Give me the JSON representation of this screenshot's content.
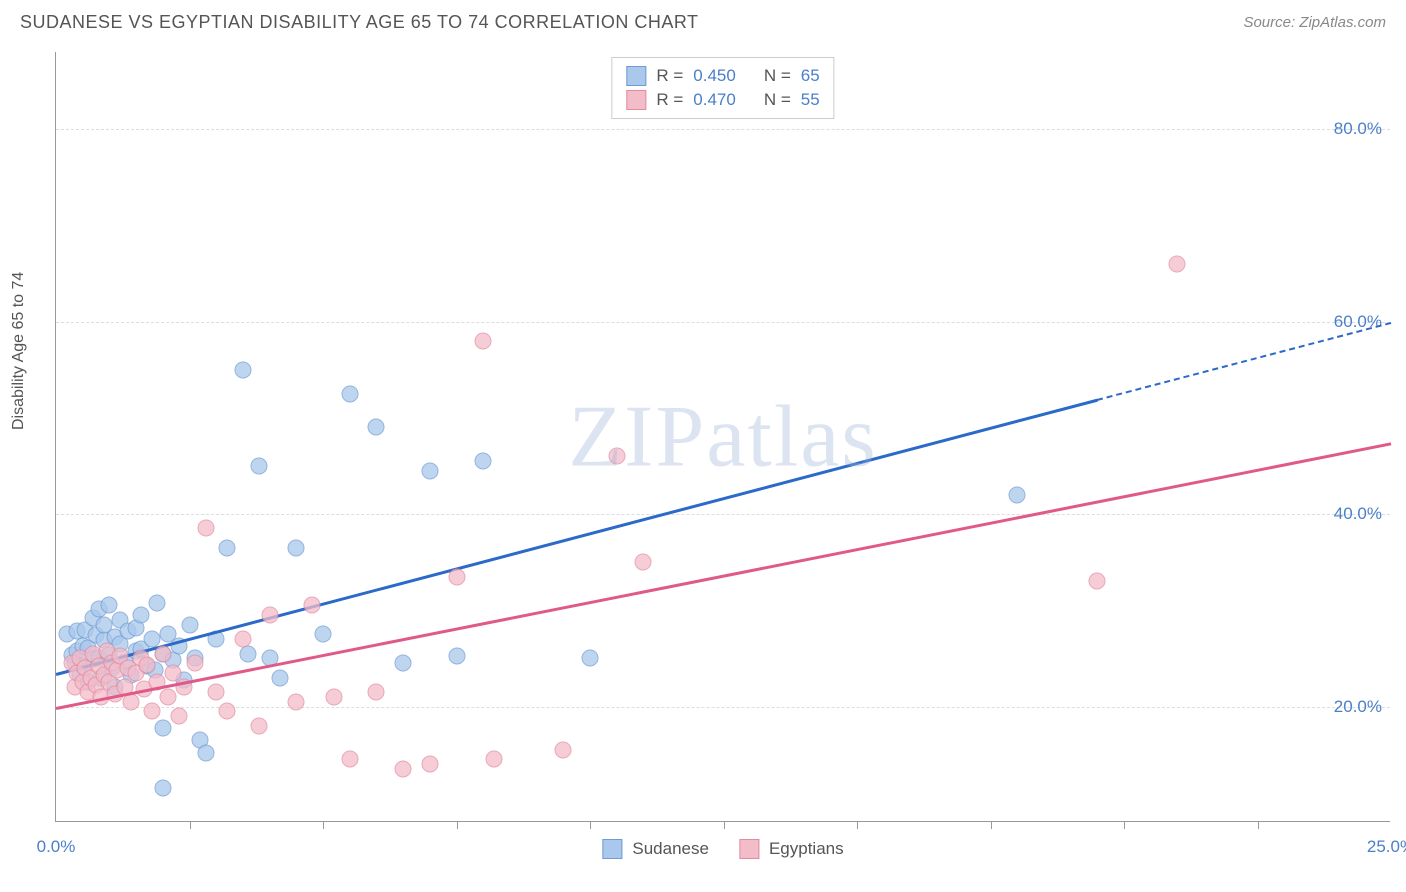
{
  "title": "SUDANESE VS EGYPTIAN DISABILITY AGE 65 TO 74 CORRELATION CHART",
  "source": "Source: ZipAtlas.com",
  "watermark": "ZIPatlas",
  "ylabel": "Disability Age 65 to 74",
  "chart": {
    "type": "scatter",
    "xlim": [
      0,
      25
    ],
    "ylim": [
      8,
      88
    ],
    "background_color": "#ffffff",
    "grid_color": "#dddddd",
    "axis_color": "#999999",
    "tick_label_color": "#4a7fc9",
    "yticks": [
      {
        "v": 20,
        "label": "20.0%"
      },
      {
        "v": 40,
        "label": "40.0%"
      },
      {
        "v": 60,
        "label": "60.0%"
      },
      {
        "v": 80,
        "label": "80.0%"
      }
    ],
    "xticks_minor": [
      2.5,
      5.0,
      7.5,
      10.0,
      12.5,
      15.0,
      17.5,
      20.0,
      22.5
    ],
    "xtick_labels": [
      {
        "v": 0,
        "label": "0.0%"
      },
      {
        "v": 25,
        "label": "25.0%"
      }
    ],
    "series": [
      {
        "name": "Sudanese",
        "fill": "#a9c8ec",
        "stroke": "#6e9cd4",
        "trend_color": "#2b6ac9",
        "r_value": "0.450",
        "n_value": "65",
        "trend": {
          "x0": 0,
          "y0": 23.5,
          "x1": 19.5,
          "y1": 52.0,
          "x1_dash": 25,
          "y1_dash": 60.0
        },
        "points": [
          [
            0.2,
            27.5
          ],
          [
            0.3,
            25.3
          ],
          [
            0.35,
            24.5
          ],
          [
            0.4,
            27.8
          ],
          [
            0.4,
            25.8
          ],
          [
            0.45,
            23.4
          ],
          [
            0.5,
            26.3
          ],
          [
            0.5,
            24.2
          ],
          [
            0.55,
            28.0
          ],
          [
            0.6,
            26.1
          ],
          [
            0.6,
            22.5
          ],
          [
            0.7,
            29.2
          ],
          [
            0.7,
            24.9
          ],
          [
            0.75,
            27.4
          ],
          [
            0.8,
            25.0
          ],
          [
            0.8,
            30.1
          ],
          [
            0.85,
            23.0
          ],
          [
            0.9,
            26.9
          ],
          [
            0.9,
            28.5
          ],
          [
            1.0,
            25.4
          ],
          [
            1.0,
            30.5
          ],
          [
            1.05,
            24.0
          ],
          [
            1.1,
            27.2
          ],
          [
            1.1,
            22.0
          ],
          [
            1.2,
            26.5
          ],
          [
            1.2,
            29.0
          ],
          [
            1.3,
            24.6
          ],
          [
            1.35,
            27.8
          ],
          [
            1.4,
            23.3
          ],
          [
            1.5,
            25.8
          ],
          [
            1.5,
            28.2
          ],
          [
            1.6,
            26.0
          ],
          [
            1.6,
            29.5
          ],
          [
            1.7,
            24.2
          ],
          [
            1.8,
            27.0
          ],
          [
            1.85,
            23.8
          ],
          [
            1.9,
            30.8
          ],
          [
            2.0,
            25.5
          ],
          [
            2.0,
            17.8
          ],
          [
            2.1,
            27.5
          ],
          [
            2.2,
            24.8
          ],
          [
            2.3,
            26.3
          ],
          [
            2.4,
            22.8
          ],
          [
            2.5,
            28.5
          ],
          [
            2.6,
            25.0
          ],
          [
            2.7,
            16.5
          ],
          [
            2.8,
            15.2
          ],
          [
            3.0,
            27.0
          ],
          [
            3.2,
            36.5
          ],
          [
            3.5,
            55.0
          ],
          [
            3.6,
            25.5
          ],
          [
            3.8,
            45.0
          ],
          [
            4.0,
            25.0
          ],
          [
            4.2,
            23.0
          ],
          [
            4.5,
            36.5
          ],
          [
            5.0,
            27.5
          ],
          [
            5.5,
            52.5
          ],
          [
            6.0,
            49.0
          ],
          [
            6.5,
            24.5
          ],
          [
            7.0,
            44.5
          ],
          [
            7.5,
            25.2
          ],
          [
            8.0,
            45.5
          ],
          [
            10.0,
            25.0
          ],
          [
            18.0,
            42.0
          ],
          [
            2.0,
            11.5
          ]
        ]
      },
      {
        "name": "Egyptians",
        "fill": "#f3bcc9",
        "stroke": "#e28ba0",
        "trend_color": "#e05a89",
        "r_value": "0.470",
        "n_value": "55",
        "trend": {
          "x0": 0,
          "y0": 20.0,
          "x1": 25,
          "y1": 47.5
        },
        "points": [
          [
            0.3,
            24.5
          ],
          [
            0.35,
            22.0
          ],
          [
            0.4,
            23.5
          ],
          [
            0.45,
            25.0
          ],
          [
            0.5,
            22.5
          ],
          [
            0.55,
            24.0
          ],
          [
            0.6,
            21.5
          ],
          [
            0.65,
            23.0
          ],
          [
            0.7,
            25.5
          ],
          [
            0.75,
            22.2
          ],
          [
            0.8,
            24.2
          ],
          [
            0.85,
            21.0
          ],
          [
            0.9,
            23.3
          ],
          [
            0.95,
            25.8
          ],
          [
            1.0,
            22.5
          ],
          [
            1.05,
            24.5
          ],
          [
            1.1,
            21.3
          ],
          [
            1.15,
            23.8
          ],
          [
            1.2,
            25.2
          ],
          [
            1.3,
            22.0
          ],
          [
            1.35,
            24.0
          ],
          [
            1.4,
            20.5
          ],
          [
            1.5,
            23.5
          ],
          [
            1.6,
            25.0
          ],
          [
            1.65,
            21.8
          ],
          [
            1.7,
            24.3
          ],
          [
            1.8,
            19.5
          ],
          [
            1.9,
            22.5
          ],
          [
            2.0,
            25.5
          ],
          [
            2.1,
            21.0
          ],
          [
            2.2,
            23.5
          ],
          [
            2.3,
            19.0
          ],
          [
            2.4,
            22.0
          ],
          [
            2.6,
            24.5
          ],
          [
            2.8,
            38.5
          ],
          [
            3.0,
            21.5
          ],
          [
            3.2,
            19.5
          ],
          [
            3.5,
            27.0
          ],
          [
            3.8,
            18.0
          ],
          [
            4.0,
            29.5
          ],
          [
            4.5,
            20.5
          ],
          [
            4.8,
            30.5
          ],
          [
            5.2,
            21.0
          ],
          [
            5.5,
            14.5
          ],
          [
            6.0,
            21.5
          ],
          [
            6.5,
            13.5
          ],
          [
            7.0,
            14.0
          ],
          [
            7.5,
            33.5
          ],
          [
            8.0,
            58.0
          ],
          [
            8.2,
            14.5
          ],
          [
            9.5,
            15.5
          ],
          [
            10.5,
            46.0
          ],
          [
            11.0,
            35.0
          ],
          [
            19.5,
            33.0
          ],
          [
            21.0,
            66.0
          ]
        ]
      }
    ]
  },
  "legend_bottom": [
    {
      "label": "Sudanese",
      "fill": "#a9c8ec",
      "stroke": "#6e9cd4"
    },
    {
      "label": "Egyptians",
      "fill": "#f3bcc9",
      "stroke": "#e28ba0"
    }
  ]
}
